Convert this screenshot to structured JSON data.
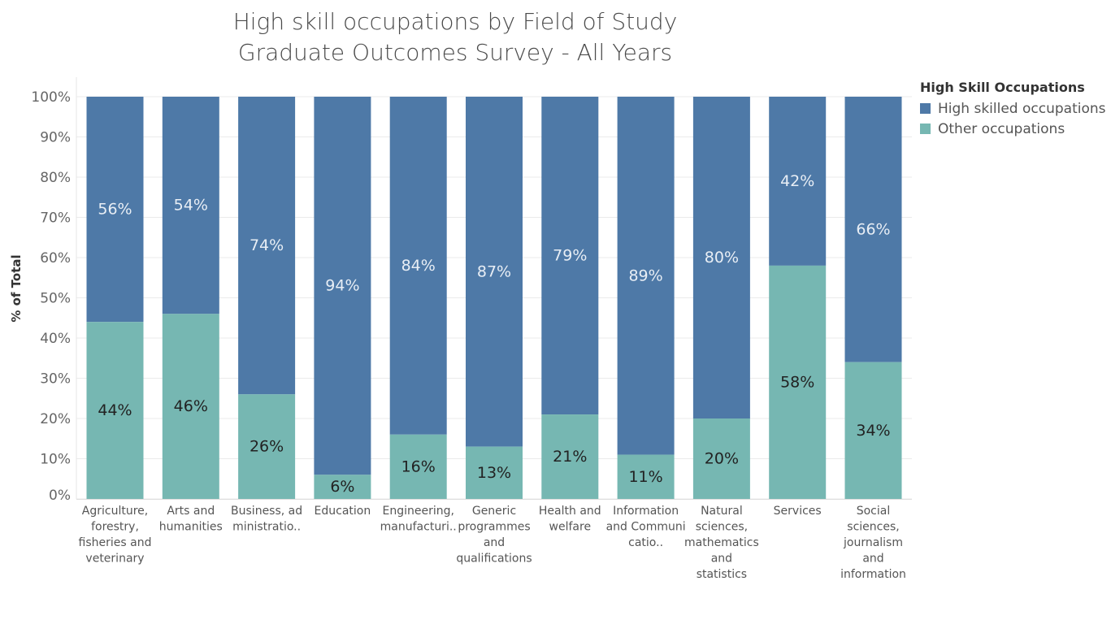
{
  "chart_data": {
    "type": "bar",
    "stacked": true,
    "title": "High skill occupations by Field of Study",
    "subtitle": "Graduate Outcomes Survey - All Years",
    "ylabel": "% of Total",
    "xlabel": "",
    "ylim": [
      0,
      100
    ],
    "y_ticks": [
      "0%",
      "10%",
      "20%",
      "30%",
      "40%",
      "50%",
      "60%",
      "70%",
      "80%",
      "90%",
      "100%"
    ],
    "grid": true,
    "legend": {
      "title": "High Skill Occupations",
      "placement": "top-right"
    },
    "categories": [
      [
        "Agriculture,",
        "forestry,",
        "fisheries and",
        "veterinary"
      ],
      [
        "Arts and",
        "humanities"
      ],
      [
        "Business, ad",
        "ministratio.."
      ],
      [
        "Education"
      ],
      [
        "Engineering,",
        "manufacturi.."
      ],
      [
        "Generic",
        "programmes",
        "and",
        "qualifications"
      ],
      [
        "Health and",
        "welfare"
      ],
      [
        "Information",
        "and Communi",
        "catio.."
      ],
      [
        "Natural",
        "sciences,",
        "mathematics",
        "and",
        "statistics"
      ],
      [
        "Services"
      ],
      [
        "Social",
        "sciences,",
        "journalism",
        "and",
        "information"
      ]
    ],
    "series": [
      {
        "name": "High skilled occupations",
        "color": "#4e79a7",
        "values": [
          56,
          54,
          74,
          94,
          84,
          87,
          79,
          89,
          80,
          42,
          66
        ],
        "labels": [
          "56%",
          "54%",
          "74%",
          "94%",
          "84%",
          "87%",
          "79%",
          "89%",
          "80%",
          "42%",
          "66%"
        ]
      },
      {
        "name": "Other occupations",
        "color": "#76b7b2",
        "values": [
          44,
          46,
          26,
          6,
          16,
          13,
          21,
          11,
          20,
          58,
          34
        ],
        "labels": [
          "44%",
          "46%",
          "26%",
          "6%",
          "16%",
          "13%",
          "21%",
          "11%",
          "20%",
          "58%",
          "34%"
        ]
      }
    ]
  }
}
